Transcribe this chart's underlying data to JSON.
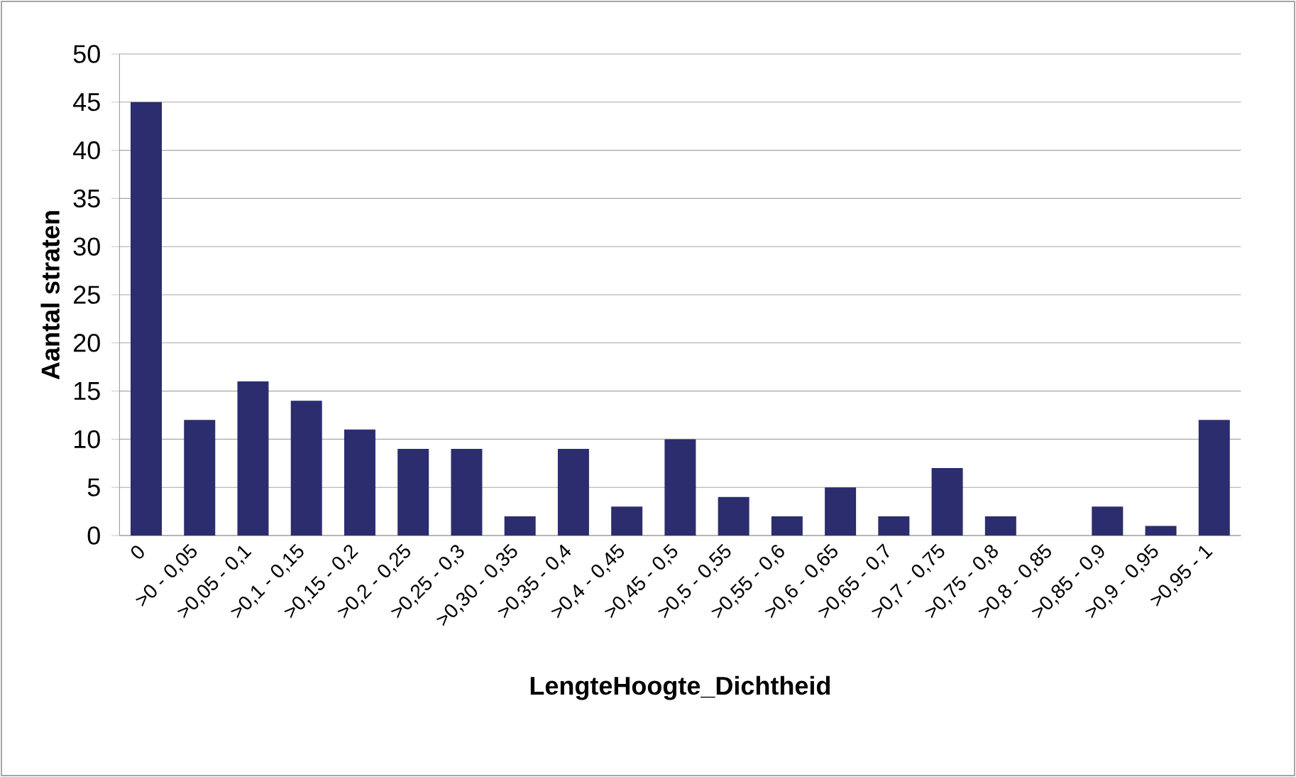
{
  "chart_data": {
    "type": "bar",
    "xlabel": "LengteHoogte_Dichtheid",
    "ylabel": "Aantal straten",
    "categories": [
      "0",
      ">0 - 0,05",
      ">0,05 - 0,1",
      ">0,1 - 0,15",
      ">0,15 - 0,2",
      ">0,2 - 0,25",
      ">0,25 - 0,3",
      ">0,30 - 0,35",
      ">0,35 - 0,4",
      ">0,4 - 0,45",
      ">0,45 - 0,5",
      ">0,5 - 0,55",
      ">0,55 - 0,6",
      ">0,6 - 0,65",
      ">0,65 - 0,7",
      ">0,7 - 0,75",
      ">0,75 - 0,8",
      ">0,8 - 0,85",
      ">0,85 - 0,9",
      ">0,9 - 0,95",
      ">0,95 - 1"
    ],
    "values": [
      45,
      12,
      16,
      14,
      11,
      9,
      9,
      2,
      9,
      3,
      10,
      4,
      2,
      5,
      2,
      7,
      2,
      0,
      3,
      1,
      12
    ],
    "color": "#2b2d6e",
    "ylim": [
      0,
      50
    ],
    "yticks": [
      0,
      5,
      10,
      15,
      20,
      25,
      30,
      35,
      40,
      45,
      50
    ],
    "grid": "y"
  }
}
